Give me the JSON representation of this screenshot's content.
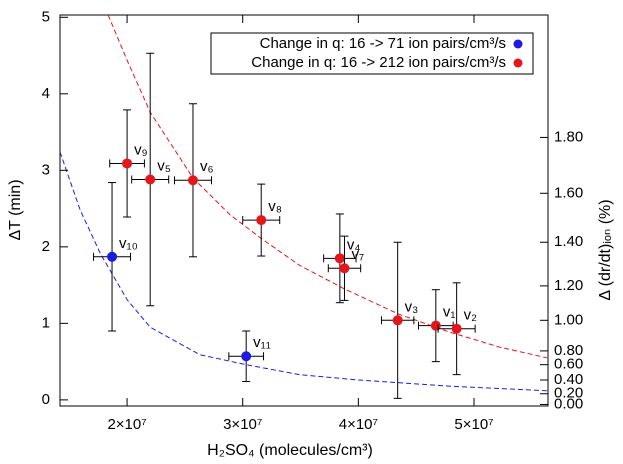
{
  "chart_data": {
    "type": "scatter",
    "xlabel": "H₂SO₄  (molecules/cm³)",
    "ylabel": "ΔT (min)",
    "y2label": "Δ (dr/dt)ᵢₒₙ (%)",
    "xlim": [
      14200000,
      56400000
    ],
    "ylim": [
      -0.08,
      5.03
    ],
    "xticks": [
      {
        "value": 20000000,
        "label": "2×10⁷"
      },
      {
        "value": 30000000,
        "label": "3×10⁷"
      },
      {
        "value": 40000000,
        "label": "4×10⁷"
      },
      {
        "value": 50000000,
        "label": "5×10⁷"
      }
    ],
    "yticks": [
      0,
      1,
      2,
      3,
      4,
      5
    ],
    "y2ticks": [
      {
        "value": 0.0,
        "label": "0.00",
        "at": -0.06
      },
      {
        "value": 0.2,
        "label": "0.20",
        "at": 0.08
      },
      {
        "value": 0.4,
        "label": "0.40",
        "at": 0.26
      },
      {
        "value": 0.6,
        "label": "0.60",
        "at": 0.46
      },
      {
        "value": 0.8,
        "label": "0.80",
        "at": 0.64
      },
      {
        "value": 1.0,
        "label": "1.00",
        "at": 1.04
      },
      {
        "value": 1.2,
        "label": "1.20",
        "at": 1.49
      },
      {
        "value": 1.4,
        "label": "1.40",
        "at": 2.06
      },
      {
        "value": 1.6,
        "label": "1.60",
        "at": 2.7
      },
      {
        "value": 1.8,
        "label": "1.80",
        "at": 3.43
      }
    ],
    "legend": "top right",
    "series": [
      {
        "name": "Change in q: 16 -> 71 ion pairs/cm³/s",
        "color": "#1c1ce0",
        "labels": [
          "v₁₀",
          "v₁₁"
        ],
        "x": [
          18700000,
          30300000
        ],
        "values": [
          1.87,
          0.57
        ],
        "xerr": [
          1600000,
          1500000
        ],
        "yerr": [
          0.97,
          0.33
        ],
        "fit_x": [
          14200000,
          15950000,
          17700000,
          20000000,
          22000000,
          26300000,
          30300000,
          34900000,
          40000000,
          47800000,
          56300000
        ],
        "fit_y": [
          3.24,
          2.48,
          1.91,
          1.31,
          0.95,
          0.59,
          0.46,
          0.33,
          0.26,
          0.18,
          0.12
        ]
      },
      {
        "name": "Change in q: 16 -> 212 ion pairs/cm³/s",
        "color": "#e3161c",
        "labels": [
          "v₉",
          "v₅",
          "v₆",
          "v₈",
          "v₄",
          "v₇",
          "v₃",
          "v₁",
          "v₂"
        ],
        "x": [
          20000000,
          22000000,
          25700000,
          31600000,
          38400000,
          38800000,
          43400000,
          46700000,
          48500000
        ],
        "values": [
          3.09,
          2.88,
          2.87,
          2.35,
          1.85,
          1.72,
          1.04,
          0.97,
          0.93
        ],
        "xerr": [
          1500000,
          1600000,
          1600000,
          1600000,
          1400000,
          1400000,
          1400000,
          1500000,
          1600000
        ],
        "yerr": [
          0.7,
          1.65,
          1.0,
          0.47,
          0.58,
          0.42,
          1.02,
          0.47,
          0.6
        ],
        "fit_x": [
          18360000,
          20000000,
          22000000,
          25700000,
          28900000,
          31600000,
          34900000,
          38800000,
          43500000,
          47800000,
          52200000,
          56300000
        ],
        "fit_y": [
          5.03,
          4.44,
          3.76,
          2.9,
          2.42,
          2.11,
          1.76,
          1.45,
          1.12,
          0.89,
          0.69,
          0.55
        ]
      }
    ]
  }
}
